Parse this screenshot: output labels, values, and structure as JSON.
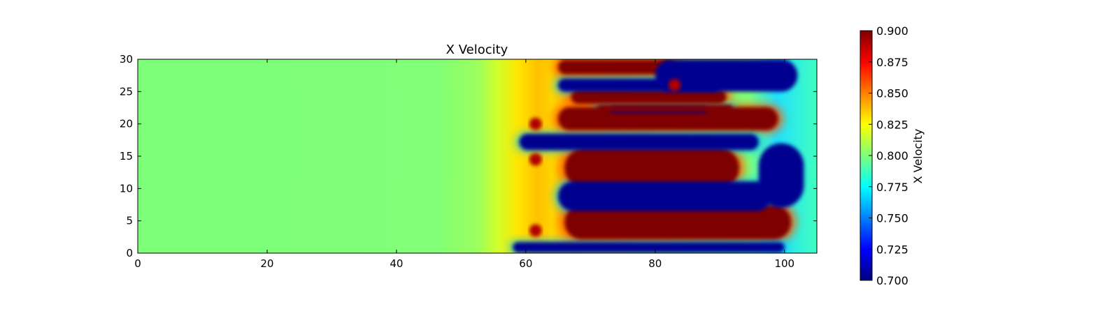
{
  "chart_data": {
    "type": "heatmap",
    "title": "X Velocity",
    "xlabel": "",
    "ylabel": "",
    "xlim": [
      0,
      105
    ],
    "ylim": [
      0,
      30
    ],
    "xticks": [
      0,
      20,
      40,
      60,
      80,
      100
    ],
    "yticks": [
      0,
      5,
      10,
      15,
      20,
      25,
      30
    ],
    "colormap": "jet",
    "colorbar": {
      "label": "X Velocity",
      "range": [
        0.7,
        0.9
      ],
      "ticks": [
        "0.700",
        "0.725",
        "0.750",
        "0.775",
        "0.800",
        "0.825",
        "0.850",
        "0.875",
        "0.900"
      ]
    },
    "background_value": 0.8,
    "regions": {
      "high": [
        {
          "x0": 65,
          "x1": 83,
          "yc": 28.8,
          "h": 2.3
        },
        {
          "x0": 67,
          "x1": 91,
          "yc": 24.2,
          "h": 2.2
        },
        {
          "x0": 65,
          "x1": 99,
          "yc": 20.8,
          "h": 3.6
        },
        {
          "x0": 66,
          "x1": 93,
          "yc": 13.2,
          "h": 6.2
        },
        {
          "x0": 66,
          "x1": 101,
          "yc": 4.8,
          "h": 5.4
        },
        {
          "x0": 73,
          "x1": 88,
          "yc": 22.2,
          "h": 1.0
        }
      ],
      "low": [
        {
          "x0": 65,
          "x1": 90,
          "yc": 26.0,
          "h": 2.0
        },
        {
          "x0": 59,
          "x1": 96,
          "yc": 17.2,
          "h": 2.5
        },
        {
          "x0": 65,
          "x1": 98,
          "yc": 8.8,
          "h": 4.6
        },
        {
          "x0": 58,
          "x1": 100,
          "yc": 0.9,
          "h": 1.6
        },
        {
          "x0": 71,
          "x1": 92,
          "yc": 22.4,
          "h": 1.1
        },
        {
          "x0": 80,
          "x1": 102,
          "yc": 27.5,
          "h": 5.0
        },
        {
          "x0": 96,
          "x1": 103,
          "yc": 12.0,
          "h": 10.0
        }
      ],
      "warm_spots": [
        {
          "x": 61.5,
          "y": 20.0
        },
        {
          "x": 61.5,
          "y": 14.5
        },
        {
          "x": 61.5,
          "y": 3.5
        },
        {
          "x": 83,
          "y": 26.0
        }
      ]
    }
  }
}
